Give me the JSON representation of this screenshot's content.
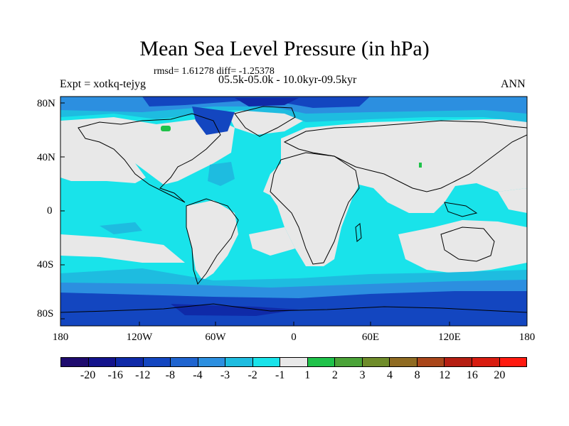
{
  "title": "Mean Sea Level Pressure (in hPa)",
  "stats": "rmsd= 1.61278 diff= -1.25378",
  "experiment": "Expt = xotkq-tejyg",
  "period": "05.5k-05.0k - 10.0kyr-09.5kyr",
  "season": "ANN",
  "lat_labels": [
    "80N",
    "40N",
    "0",
    "40S",
    "80S"
  ],
  "lon_labels": [
    "180",
    "120W",
    "60W",
    "0",
    "60E",
    "120E",
    "180"
  ],
  "colorbar": {
    "labels": [
      "-20",
      "-16",
      "-12",
      "-8",
      "-4",
      "-3",
      "-2",
      "-1",
      "1",
      "2",
      "3",
      "4",
      "8",
      "12",
      "16",
      "20"
    ],
    "colors": [
      "#1e0b6e",
      "#13138c",
      "#0f2aa8",
      "#1346c0",
      "#1f64cf",
      "#2c8fe0",
      "#1ebce0",
      "#19e3ea",
      "#e8e8e8",
      "#1fc24a",
      "#4ba338",
      "#6f8c2a",
      "#8f6b22",
      "#a9461a",
      "#b51e12",
      "#d81c10",
      "#ff1a10"
    ]
  },
  "colors": {
    "land_neutral": "#e8e8e8",
    "ocean_light": "#19e3ea",
    "ocean_mid": "#1ebce0",
    "ocean_deep": "#2c8fe0",
    "low_strong": "#1346c0",
    "low_stronger": "#0f2aa8",
    "positive": "#1fc24a"
  }
}
